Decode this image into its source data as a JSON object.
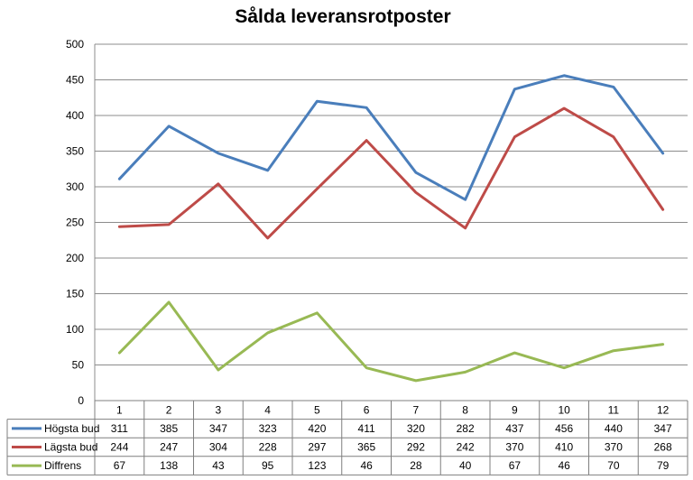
{
  "chart_data": {
    "type": "line",
    "title": "Sålda leveransrotposter",
    "categories": [
      "1",
      "2",
      "3",
      "4",
      "5",
      "6",
      "7",
      "8",
      "9",
      "10",
      "11",
      "12"
    ],
    "ylim": [
      0,
      500
    ],
    "yticks": [
      0,
      50,
      100,
      150,
      200,
      250,
      300,
      350,
      400,
      450,
      500
    ],
    "grid": true,
    "legend": "data-table",
    "series": [
      {
        "name": "Högsta bud",
        "color": "#4a7ebb",
        "values": [
          311,
          385,
          347,
          323,
          420,
          411,
          320,
          282,
          437,
          456,
          440,
          347
        ]
      },
      {
        "name": "Lägsta bud",
        "color": "#be4b48",
        "values": [
          244,
          247,
          304,
          228,
          297,
          365,
          292,
          242,
          370,
          410,
          370,
          268
        ]
      },
      {
        "name": "Diffrens",
        "color": "#98b954",
        "values": [
          67,
          138,
          43,
          95,
          123,
          46,
          28,
          40,
          67,
          46,
          70,
          79
        ]
      }
    ]
  }
}
